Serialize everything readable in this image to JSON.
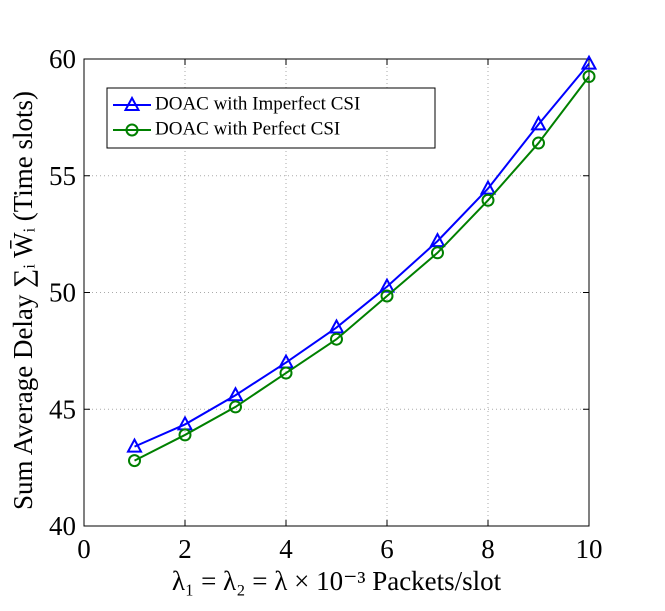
{
  "chart_data": {
    "type": "line",
    "xlabel": "λ₁ = λ₂ = λ × 10⁻³ Packets/slot",
    "ylabel": "Sum Average Delay ∑ᵢ W̄ᵢ (Time slots)",
    "x": [
      1,
      2,
      3,
      4,
      5,
      6,
      7,
      8,
      9,
      10
    ],
    "series": [
      {
        "name": "DOAC with Imperfect CSI",
        "color": "#0000ff",
        "marker": "triangle",
        "values": [
          43.4,
          44.35,
          45.6,
          47.0,
          48.5,
          50.25,
          52.2,
          54.45,
          57.2,
          59.8
        ]
      },
      {
        "name": "DOAC with Perfect CSI",
        "color": "#008000",
        "marker": "circle",
        "values": [
          42.8,
          43.9,
          45.1,
          46.55,
          48.0,
          49.85,
          51.7,
          53.95,
          56.4,
          59.25
        ]
      }
    ],
    "xlim": [
      0,
      10
    ],
    "ylim": [
      40,
      60
    ],
    "xticks": [
      0,
      2,
      4,
      6,
      8,
      10
    ],
    "yticks": [
      40,
      45,
      50,
      55,
      60
    ],
    "grid": true,
    "legend": "upper left"
  }
}
